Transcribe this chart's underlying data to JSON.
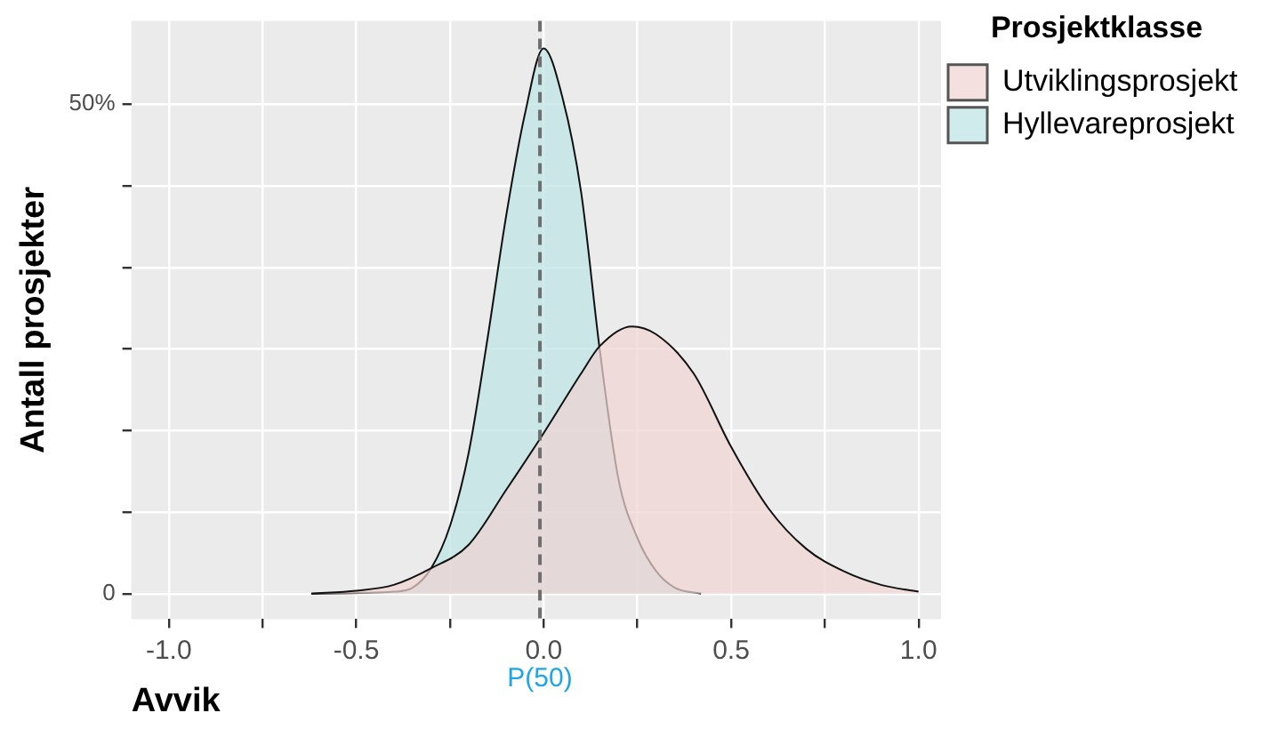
{
  "chart_data": {
    "type": "area",
    "xlabel": "Avvik",
    "ylabel": "Antall prosjekter",
    "legend_title": "Prosjektklasse",
    "legend": "top right",
    "grid": true,
    "marker": "none",
    "line_style": "solid",
    "xlim": [
      -1.1,
      1.06
    ],
    "ylim": [
      -2.6,
      58.5
    ],
    "xticks": [
      {
        "value": -1,
        "label": "-1.0"
      },
      {
        "value": -0.75,
        "label": null
      },
      -0.5,
      {
        "value": -0.25,
        "label": null
      },
      {
        "value": 0,
        "label": "0.0"
      },
      {
        "value": 0.25,
        "label": null
      },
      0.5,
      {
        "value": 0.75,
        "label": null
      },
      {
        "value": 1,
        "label": "1.0"
      }
    ],
    "yticks": [
      {
        "value": 0,
        "label": "0"
      },
      {
        "value": 8.33,
        "label": null
      },
      {
        "value": 16.67,
        "label": null
      },
      {
        "value": 25,
        "label": null
      },
      {
        "value": 33.33,
        "label": null
      },
      {
        "value": 41.67,
        "label": null
      },
      {
        "value": 50,
        "label": "50%"
      }
    ],
    "ref_lines": [
      {
        "axis": "x",
        "value": -0.01,
        "label": "P(50)",
        "color": "#6f6f6f",
        "line_style": "dashed"
      }
    ],
    "series": [
      {
        "name": "Utviklingsprosjekt",
        "color": "#eed4d3",
        "x": [
          -0.62,
          -0.5,
          -0.4,
          -0.3,
          -0.2,
          -0.1,
          0.0,
          0.1,
          0.15,
          0.235,
          0.3,
          0.4,
          0.5,
          0.6,
          0.7,
          0.8,
          0.9,
          1.0
        ],
        "values": [
          0,
          0.3,
          0.9,
          2.6,
          5.0,
          10.6,
          16.4,
          22.5,
          25.3,
          27.3,
          26.5,
          22.5,
          15,
          8.7,
          4.6,
          2.3,
          0.9,
          0.2
        ]
      },
      {
        "name": "Hyllevareprosjekt",
        "color": "#bde3e3",
        "x": [
          -0.62,
          -0.4,
          -0.35,
          -0.3,
          -0.25,
          -0.2,
          -0.15,
          -0.1,
          -0.05,
          0.0,
          0.05,
          0.1,
          0.15,
          0.2,
          0.25,
          0.3,
          0.35,
          0.42
        ],
        "values": [
          0,
          0.2,
          0.6,
          2.6,
          6.9,
          14.4,
          26,
          38.6,
          49,
          55.7,
          50.7,
          41,
          24.8,
          11.6,
          5.7,
          2.3,
          0.6,
          0
        ]
      }
    ]
  }
}
